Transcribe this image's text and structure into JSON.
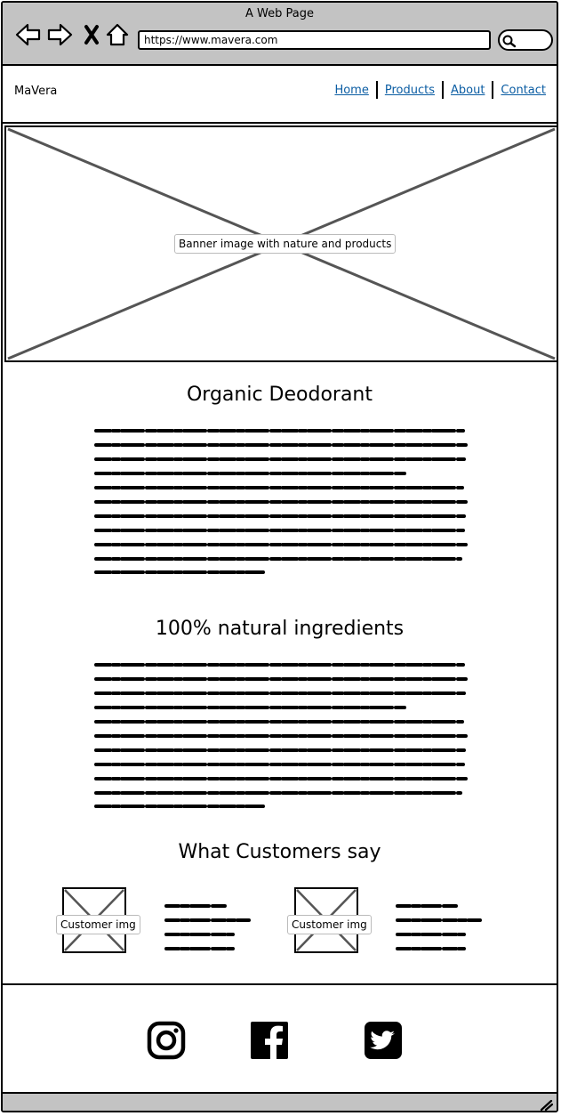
{
  "browser": {
    "title": "A Web Page",
    "url": "https://www.mavera.com",
    "icons": [
      "back-arrow-icon",
      "forward-arrow-icon",
      "close-x-icon",
      "home-icon",
      "search-icon"
    ]
  },
  "site": {
    "brand": "MaVera",
    "nav": [
      {
        "label": "Home"
      },
      {
        "label": "Products"
      },
      {
        "label": "About"
      },
      {
        "label": "Contact"
      }
    ],
    "link_color": "#0b5da3"
  },
  "banner": {
    "label": "Banner image with nature and products"
  },
  "sections": [
    {
      "title": "Organic Deodorant"
    },
    {
      "title": "100%  natural ingredients"
    }
  ],
  "testimonials": {
    "title": "What Customers say",
    "items": [
      {
        "image_label": "Customer img"
      },
      {
        "image_label": "Customer img"
      }
    ]
  },
  "footer": {
    "icons": [
      "instagram-icon",
      "facebook-icon",
      "twitter-icon"
    ]
  },
  "colors": {
    "chrome_gray": "#c3c3c3",
    "placeholder_line": "#555555"
  }
}
